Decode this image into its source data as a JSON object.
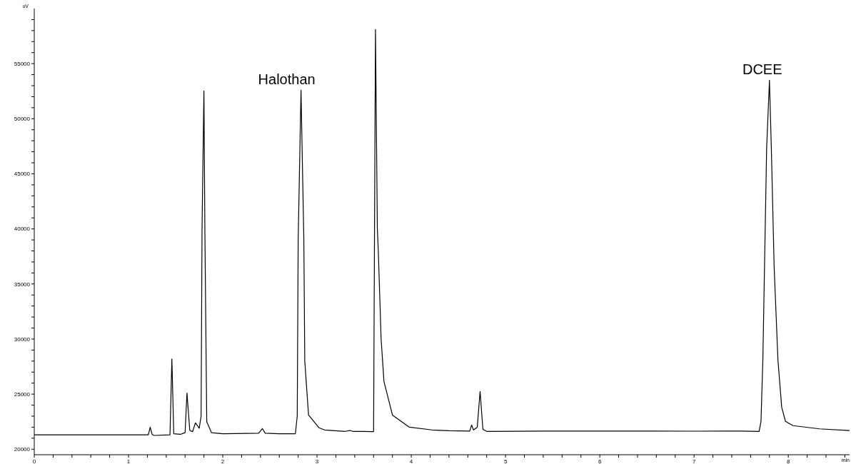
{
  "chart_data": {
    "type": "line",
    "xlabel": "min",
    "ylabel": "uV",
    "marker": "none",
    "xlim": [
      0,
      8.65
    ],
    "ylim": [
      19500,
      60000
    ],
    "xticks": [
      0,
      {
        "value": 0.2,
        "label": null
      },
      {
        "value": 0.4,
        "label": null
      },
      {
        "value": 0.6,
        "label": null
      },
      {
        "value": 0.8,
        "label": null
      },
      1,
      {
        "value": 1.2,
        "label": null
      },
      {
        "value": 1.4,
        "label": null
      },
      {
        "value": 1.6,
        "label": null
      },
      {
        "value": 1.8,
        "label": null
      },
      2,
      {
        "value": 2.2,
        "label": null
      },
      {
        "value": 2.4,
        "label": null
      },
      {
        "value": 2.6,
        "label": null
      },
      {
        "value": 2.8,
        "label": null
      },
      3,
      {
        "value": 3.2,
        "label": null
      },
      {
        "value": 3.4,
        "label": null
      },
      {
        "value": 3.6,
        "label": null
      },
      {
        "value": 3.8,
        "label": null
      },
      4,
      {
        "value": 4.2,
        "label": null
      },
      {
        "value": 4.4,
        "label": null
      },
      {
        "value": 4.6,
        "label": null
      },
      {
        "value": 4.8,
        "label": null
      },
      5,
      {
        "value": 5.2,
        "label": null
      },
      {
        "value": 5.4,
        "label": null
      },
      {
        "value": 5.6,
        "label": null
      },
      {
        "value": 5.8,
        "label": null
      },
      6,
      {
        "value": 6.2,
        "label": null
      },
      {
        "value": 6.4,
        "label": null
      },
      {
        "value": 6.6,
        "label": null
      },
      {
        "value": 6.8,
        "label": null
      },
      7,
      {
        "value": 7.2,
        "label": null
      },
      {
        "value": 7.4,
        "label": null
      },
      {
        "value": 7.6,
        "label": null
      },
      {
        "value": 7.8,
        "label": null
      },
      8,
      {
        "value": 8.2,
        "label": null
      },
      {
        "value": 8.4,
        "label": null
      },
      {
        "value": 8.6,
        "label": null
      }
    ],
    "yticks": [
      20000,
      {
        "value": 21000,
        "label": null
      },
      {
        "value": 22000,
        "label": null
      },
      {
        "value": 23000,
        "label": null
      },
      {
        "value": 24000,
        "label": null
      },
      25000,
      {
        "value": 26000,
        "label": null
      },
      {
        "value": 27000,
        "label": null
      },
      {
        "value": 28000,
        "label": null
      },
      {
        "value": 29000,
        "label": null
      },
      30000,
      {
        "value": 31000,
        "label": null
      },
      {
        "value": 32000,
        "label": null
      },
      {
        "value": 33000,
        "label": null
      },
      {
        "value": 34000,
        "label": null
      },
      35000,
      {
        "value": 36000,
        "label": null
      },
      {
        "value": 37000,
        "label": null
      },
      {
        "value": 38000,
        "label": null
      },
      {
        "value": 39000,
        "label": null
      },
      40000,
      {
        "value": 41000,
        "label": null
      },
      {
        "value": 42000,
        "label": null
      },
      {
        "value": 43000,
        "label": null
      },
      {
        "value": 44000,
        "label": null
      },
      45000,
      {
        "value": 46000,
        "label": null
      },
      {
        "value": 47000,
        "label": null
      },
      {
        "value": 48000,
        "label": null
      },
      {
        "value": 49000,
        "label": null
      },
      50000,
      {
        "value": 51000,
        "label": null
      },
      {
        "value": 52000,
        "label": null
      },
      {
        "value": 53000,
        "label": null
      },
      {
        "value": 54000,
        "label": null
      },
      55000,
      {
        "value": 56000,
        "label": null
      },
      {
        "value": 57000,
        "label": null
      },
      {
        "value": 58000,
        "label": null
      },
      {
        "value": 59000,
        "label": null
      }
    ],
    "annotations": [
      {
        "text": "Halothan",
        "x": 2.83,
        "y": 52600
      },
      {
        "text": "DCEE",
        "x": 7.8,
        "y": 53500
      }
    ],
    "series": [
      {
        "color": "#000000",
        "x": [
          0,
          1.21,
          1.23,
          1.25,
          1.27,
          1.44,
          1.46,
          1.48,
          1.55,
          1.6,
          1.62,
          1.65,
          1.68,
          1.71,
          1.75,
          1.77,
          1.78,
          1.8,
          1.81,
          1.83,
          1.88,
          2.0,
          2.38,
          2.42,
          2.45,
          2.6,
          2.77,
          2.79,
          2.8,
          2.83,
          2.86,
          2.87,
          2.91,
          3.02,
          3.08,
          3.3,
          3.35,
          3.38,
          3.58,
          3.6,
          3.61,
          3.62,
          3.64,
          3.65,
          3.68,
          3.71,
          3.8,
          3.98,
          4.22,
          4.4,
          4.62,
          4.64,
          4.66,
          4.7,
          4.73,
          4.76,
          4.8,
          5.65,
          6.55,
          7.0,
          7.5,
          7.69,
          7.71,
          7.73,
          7.77,
          7.8,
          7.82,
          7.85,
          7.89,
          7.93,
          7.97,
          8.05,
          8.33,
          8.65
        ],
        "values": [
          21300,
          21300,
          22000,
          21350,
          21250,
          21300,
          28200,
          21400,
          21350,
          21500,
          25100,
          21700,
          21600,
          22400,
          21900,
          23000,
          40000,
          52530,
          40000,
          22500,
          21500,
          21400,
          21450,
          21880,
          21450,
          21400,
          21400,
          23000,
          39000,
          52600,
          39000,
          28000,
          23100,
          21950,
          21750,
          21620,
          21700,
          21620,
          21600,
          21600,
          40000,
          58100,
          40000,
          38000,
          30000,
          26150,
          23100,
          22000,
          21750,
          21680,
          21650,
          22200,
          21750,
          22000,
          25250,
          21800,
          21620,
          21650,
          21650,
          21640,
          21650,
          21620,
          22500,
          28100,
          47300,
          53500,
          47300,
          36500,
          28100,
          23800,
          22530,
          22140,
          21850,
          21700
        ]
      }
    ]
  }
}
